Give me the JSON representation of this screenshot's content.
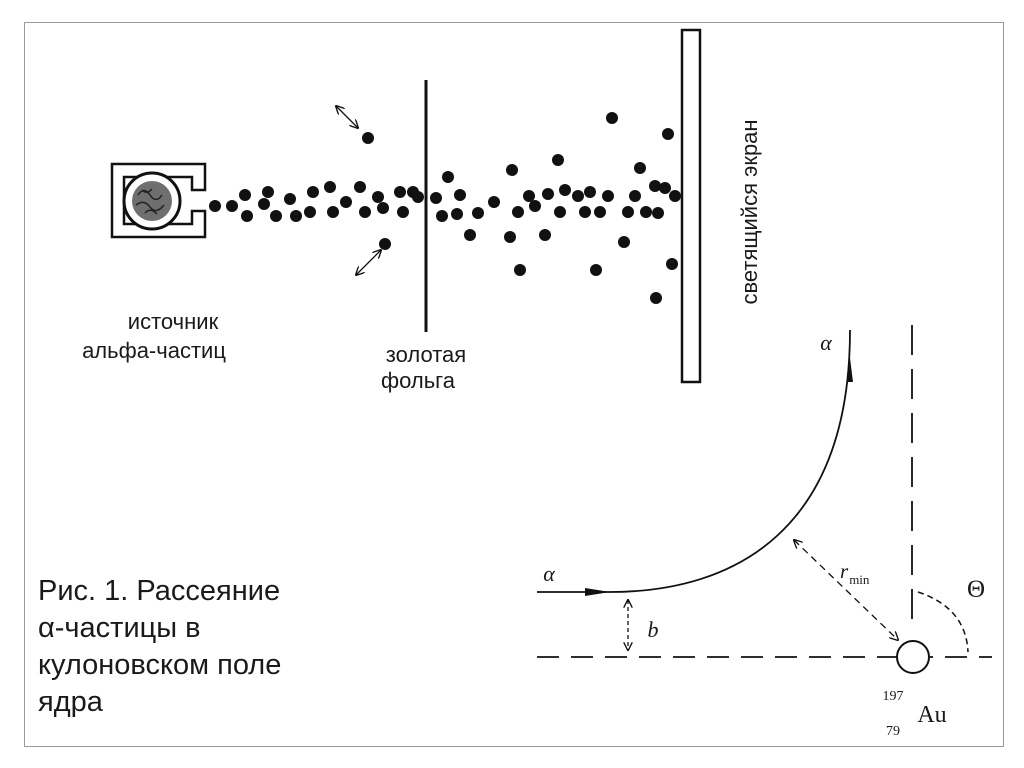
{
  "labels": {
    "source": [
      "источник",
      "альфа-частиц"
    ],
    "foil": [
      "золотая",
      "фольга"
    ],
    "screen": "светящийся экран",
    "alpha": "α",
    "impact_parameter": "b",
    "r_min_main": "r",
    "r_min_sub": "min",
    "angle": "Θ",
    "nucleus_mass": "197",
    "nucleus_charge": "79",
    "nucleus_symbol": "Au"
  },
  "caption": [
    "Рис. 1. Рассеяние",
    "α-частицы в",
    "кулоновском поле",
    "ядра"
  ],
  "colors": {
    "ink": "#111111",
    "text": "#1a1a1a",
    "frame": "#9a9a9a"
  }
}
